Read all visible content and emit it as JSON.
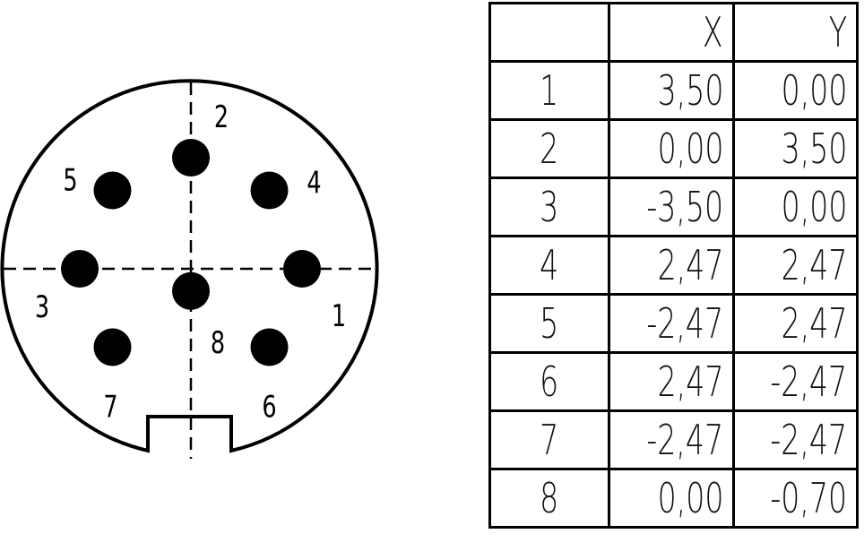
{
  "pins": [
    {
      "label": "1",
      "x": "3,50",
      "y": "0,00"
    },
    {
      "label": "2",
      "x": "0,00",
      "y": "3,50"
    },
    {
      "label": "3",
      "x": "-3,50",
      "y": "0,00"
    },
    {
      "label": "4",
      "x": "2,47",
      "y": "2,47"
    },
    {
      "label": "5",
      "x": "-2,47",
      "y": "2,47"
    },
    {
      "label": "6",
      "x": "2,47",
      "y": "-2,47"
    },
    {
      "label": "7",
      "x": "-2,47",
      "y": "-2,47"
    },
    {
      "label": "8",
      "x": "0,00",
      "y": "-0,70"
    }
  ],
  "table": {
    "headers": [
      "",
      "X",
      "Y"
    ]
  }
}
